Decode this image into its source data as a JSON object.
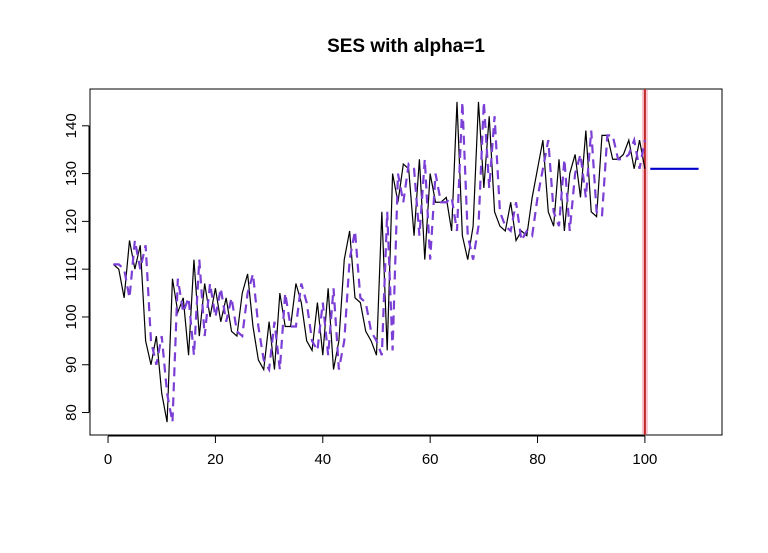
{
  "chart_data": {
    "type": "line",
    "title": "SES with alpha=1",
    "xlim": [
      -3.36,
      114.36
    ],
    "ylim": [
      75.3,
      147.7
    ],
    "xticks": [
      0,
      20,
      40,
      60,
      80,
      100
    ],
    "yticks": [
      80,
      90,
      100,
      110,
      120,
      130,
      140
    ],
    "vline": 100,
    "vline_color": "#c0282a",
    "series": [
      {
        "color": "#000000",
        "dashed": false,
        "x": [
          1,
          2,
          3,
          4,
          5,
          6,
          7,
          8,
          9,
          10,
          11,
          12,
          13,
          14,
          15,
          16,
          17,
          18,
          19,
          20,
          21,
          22,
          23,
          24,
          25,
          26,
          27,
          28,
          29,
          30,
          31,
          32,
          33,
          34,
          35,
          36,
          37,
          38,
          39,
          40,
          41,
          42,
          43,
          44,
          45,
          46,
          47,
          48,
          49,
          50,
          51,
          52,
          53,
          54,
          55,
          56,
          57,
          58,
          59,
          60,
          61,
          62,
          63,
          64,
          65,
          66,
          67,
          68,
          69,
          70,
          71,
          72,
          73,
          74,
          75,
          76,
          77,
          78,
          79,
          80,
          81,
          82,
          83,
          84,
          85,
          86,
          87,
          88,
          89,
          90,
          91,
          92,
          93,
          94,
          95,
          96,
          97,
          98,
          99,
          100
        ],
        "values": [
          111,
          110,
          104,
          116,
          110,
          115,
          95,
          90,
          96,
          84,
          78,
          108,
          101,
          104,
          92,
          112,
          96,
          107,
          100,
          106,
          99,
          104,
          97,
          96,
          105,
          109,
          98,
          91,
          89,
          99,
          89,
          105,
          98,
          98,
          107,
          103,
          95,
          93,
          103,
          92,
          106,
          89,
          95,
          112,
          118,
          104,
          103,
          97,
          95,
          92,
          122,
          93,
          130,
          124,
          132,
          131,
          117,
          133,
          112,
          130,
          124,
          124,
          125,
          118,
          145,
          117,
          112,
          119,
          145,
          127,
          142,
          122,
          119,
          118,
          124,
          116,
          118,
          117,
          125,
          131,
          137,
          122,
          119,
          133,
          118,
          130,
          134,
          125,
          139,
          122,
          121,
          138,
          138,
          133,
          133,
          134,
          137,
          131,
          137,
          131
        ]
      },
      {
        "color": "#7b3fd6",
        "dashed": true,
        "x": [
          1,
          2,
          3,
          4,
          5,
          6,
          7,
          8,
          9,
          10,
          11,
          12,
          13,
          14,
          15,
          16,
          17,
          18,
          19,
          20,
          21,
          22,
          23,
          24,
          25,
          26,
          27,
          28,
          29,
          30,
          31,
          32,
          33,
          34,
          35,
          36,
          37,
          38,
          39,
          40,
          41,
          42,
          43,
          44,
          45,
          46,
          47,
          48,
          49,
          50,
          51,
          52,
          53,
          54,
          55,
          56,
          57,
          58,
          59,
          60,
          61,
          62,
          63,
          64,
          65,
          66,
          67,
          68,
          69,
          70,
          71,
          72,
          73,
          74,
          75,
          76,
          77,
          78,
          79,
          80,
          81,
          82,
          83,
          84,
          85,
          86,
          87,
          88,
          89,
          90,
          91,
          92,
          93,
          94,
          95,
          96,
          97,
          98,
          99,
          100
        ],
        "values": [
          111,
          111,
          110,
          104,
          116,
          110,
          115,
          95,
          90,
          96,
          84,
          78,
          108,
          101,
          104,
          92,
          112,
          96,
          107,
          100,
          106,
          99,
          104,
          97,
          96,
          105,
          109,
          98,
          91,
          89,
          99,
          89,
          105,
          98,
          98,
          107,
          103,
          95,
          93,
          103,
          92,
          106,
          89,
          95,
          112,
          118,
          104,
          103,
          97,
          95,
          92,
          122,
          93,
          130,
          124,
          132,
          131,
          117,
          133,
          112,
          130,
          124,
          124,
          125,
          118,
          145,
          117,
          112,
          119,
          145,
          127,
          142,
          122,
          119,
          118,
          124,
          116,
          118,
          117,
          125,
          131,
          137,
          122,
          119,
          133,
          118,
          130,
          134,
          125,
          139,
          122,
          121,
          138,
          138,
          133,
          133,
          134,
          137,
          131,
          137
        ]
      },
      {
        "color": "#0000cc",
        "dashed": false,
        "x": [
          101,
          102,
          103,
          104,
          105,
          106,
          107,
          108,
          109,
          110
        ],
        "values": [
          131,
          131,
          131,
          131,
          131,
          131,
          131,
          131,
          131,
          131
        ]
      }
    ]
  }
}
